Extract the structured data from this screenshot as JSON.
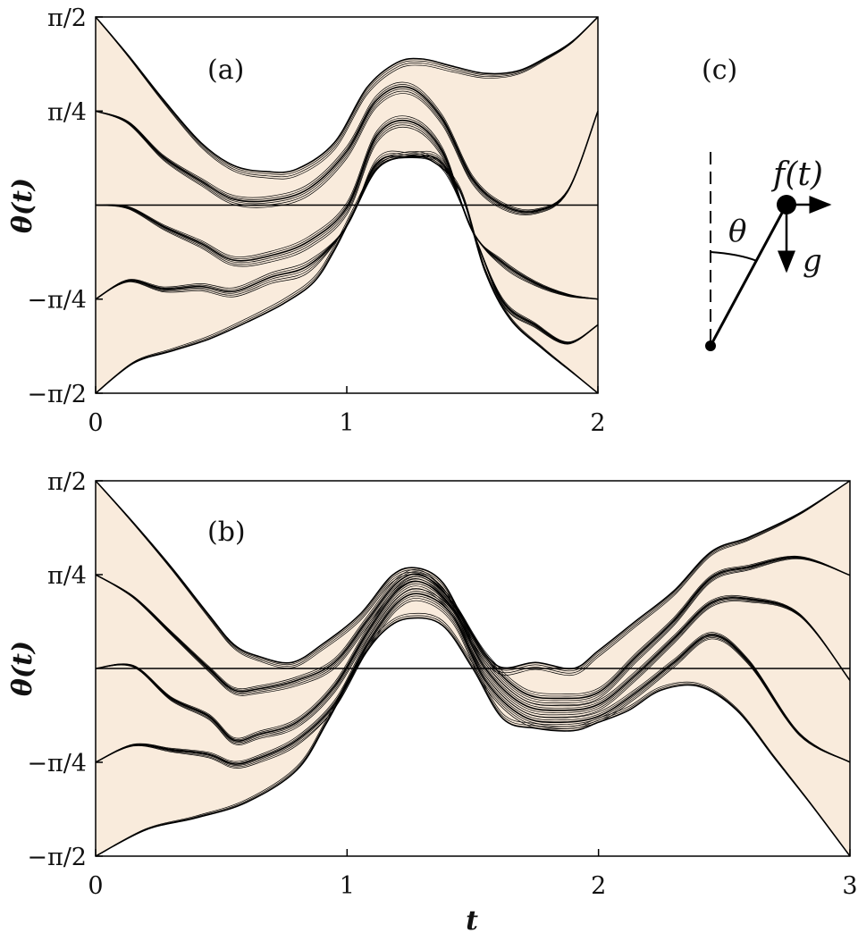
{
  "chart_data": [
    {
      "type": "line",
      "panel_label": "(a)",
      "ylabel": "θ(t)",
      "xlabel": "",
      "xlim": [
        0,
        2
      ],
      "ylim": [
        -1.5708,
        1.5708
      ],
      "x_ticks": [
        "0",
        "1",
        "2"
      ],
      "y_ticks": [
        "π/2",
        "π/4",
        "−π/4",
        "−π/2"
      ],
      "fill_color": "#f9ebdc",
      "baseline": 0,
      "envelope_upper": [
        [
          0,
          1.571
        ],
        [
          0.13,
          1.25
        ],
        [
          0.27,
          0.88
        ],
        [
          0.42,
          0.52
        ],
        [
          0.55,
          0.33
        ],
        [
          0.68,
          0.28
        ],
        [
          0.8,
          0.3
        ],
        [
          0.95,
          0.52
        ],
        [
          1.08,
          0.98
        ],
        [
          1.2,
          1.19
        ],
        [
          1.3,
          1.22
        ],
        [
          1.42,
          1.16
        ],
        [
          1.55,
          1.1
        ],
        [
          1.68,
          1.12
        ],
        [
          1.8,
          1.24
        ],
        [
          1.9,
          1.37
        ],
        [
          2,
          1.571
        ]
      ],
      "envelope_lower": [
        [
          0,
          -1.571
        ],
        [
          0.15,
          -1.32
        ],
        [
          0.3,
          -1.22
        ],
        [
          0.45,
          -1.12
        ],
        [
          0.6,
          -0.98
        ],
        [
          0.75,
          -0.82
        ],
        [
          0.87,
          -0.64
        ],
        [
          0.95,
          -0.38
        ],
        [
          1.03,
          -0.05
        ],
        [
          1.12,
          0.3
        ],
        [
          1.22,
          0.4
        ],
        [
          1.33,
          0.38
        ],
        [
          1.45,
          0.12
        ],
        [
          1.55,
          -0.55
        ],
        [
          1.65,
          -0.95
        ],
        [
          1.78,
          -1.2
        ],
        [
          1.9,
          -1.4
        ],
        [
          2,
          -1.571
        ]
      ],
      "series": [
        {
          "name": "start π/2",
          "x": [
            0,
            0.13,
            0.27,
            0.42,
            0.55,
            0.68,
            0.8,
            0.95,
            1.08,
            1.2,
            1.3,
            1.42,
            1.55,
            1.68,
            1.8,
            1.9,
            2
          ],
          "y": [
            1.571,
            1.25,
            0.88,
            0.52,
            0.33,
            0.28,
            0.3,
            0.52,
            0.98,
            1.19,
            1.22,
            1.16,
            1.1,
            1.12,
            1.24,
            1.37,
            1.571
          ]
        },
        {
          "name": "start π/4",
          "x": [
            0,
            0.13,
            0.27,
            0.42,
            0.55,
            0.7,
            0.85,
            1.0,
            1.12,
            1.25,
            1.38,
            1.5,
            1.62,
            1.75,
            1.88,
            2
          ],
          "y": [
            0.785,
            0.69,
            0.4,
            0.2,
            0.05,
            0.04,
            0.14,
            0.45,
            0.88,
            0.98,
            0.72,
            0.22,
            0.0,
            -0.05,
            0.12,
            0.785
          ]
        },
        {
          "name": "start 0",
          "x": [
            0,
            0.13,
            0.27,
            0.42,
            0.55,
            0.7,
            0.85,
            1.0,
            1.12,
            1.25,
            1.38,
            1.5,
            1.62,
            1.75,
            1.88,
            2
          ],
          "y": [
            0.0,
            -0.02,
            -0.18,
            -0.32,
            -0.46,
            -0.42,
            -0.3,
            -0.02,
            0.58,
            0.7,
            0.45,
            -0.3,
            -0.48,
            -0.65,
            -0.75,
            -0.785
          ]
        },
        {
          "name": "start −π/4",
          "x": [
            0,
            0.13,
            0.27,
            0.42,
            0.55,
            0.7,
            0.85,
            1.0,
            1.12,
            1.25,
            1.38,
            1.5,
            1.62,
            1.75,
            1.88,
            2
          ],
          "y": [
            -0.785,
            -0.63,
            -0.7,
            -0.68,
            -0.72,
            -0.6,
            -0.5,
            -0.24,
            0.35,
            0.4,
            0.35,
            -0.48,
            -0.8,
            -1.0,
            -1.15,
            -1.0
          ]
        },
        {
          "name": "start −π/2",
          "x": [
            0,
            0.15,
            0.3,
            0.45,
            0.6,
            0.75,
            0.87,
            0.95,
            1.03,
            1.12,
            1.22,
            1.33,
            1.45,
            1.55,
            1.65,
            1.78,
            1.9,
            2
          ],
          "y": [
            -1.571,
            -1.32,
            -1.22,
            -1.12,
            -0.98,
            -0.82,
            -0.64,
            -0.38,
            -0.05,
            0.3,
            0.4,
            0.38,
            0.12,
            -0.55,
            -0.95,
            -1.2,
            -1.4,
            -1.571
          ]
        }
      ]
    },
    {
      "type": "line",
      "panel_label": "(b)",
      "ylabel": "θ(t)",
      "xlabel": "t",
      "xlim": [
        0,
        3
      ],
      "ylim": [
        -1.5708,
        1.5708
      ],
      "x_ticks": [
        "0",
        "1",
        "2",
        "3"
      ],
      "y_ticks": [
        "π/2",
        "π/4",
        "−π/4",
        "−π/2"
      ],
      "fill_color": "#f9ebdc",
      "baseline": 0,
      "envelope_upper": [
        [
          0,
          1.571
        ],
        [
          0.15,
          1.22
        ],
        [
          0.3,
          0.85
        ],
        [
          0.45,
          0.45
        ],
        [
          0.55,
          0.2
        ],
        [
          0.65,
          0.1
        ],
        [
          0.78,
          0.05
        ],
        [
          0.9,
          0.2
        ],
        [
          1.05,
          0.45
        ],
        [
          1.18,
          0.78
        ],
        [
          1.28,
          0.84
        ],
        [
          1.38,
          0.72
        ],
        [
          1.48,
          0.35
        ],
        [
          1.6,
          0.02
        ],
        [
          1.75,
          0.05
        ],
        [
          1.9,
          0.0
        ],
        [
          2.0,
          0.15
        ],
        [
          2.15,
          0.4
        ],
        [
          2.3,
          0.65
        ],
        [
          2.45,
          0.98
        ],
        [
          2.6,
          1.1
        ],
        [
          2.8,
          1.3
        ],
        [
          3,
          1.571
        ]
      ],
      "envelope_lower": [
        [
          0,
          -1.571
        ],
        [
          0.2,
          -1.35
        ],
        [
          0.4,
          -1.25
        ],
        [
          0.6,
          -1.12
        ],
        [
          0.8,
          -0.85
        ],
        [
          0.92,
          -0.45
        ],
        [
          1.05,
          0.05
        ],
        [
          1.15,
          0.32
        ],
        [
          1.25,
          0.42
        ],
        [
          1.38,
          0.36
        ],
        [
          1.5,
          0.0
        ],
        [
          1.62,
          -0.42
        ],
        [
          1.75,
          -0.5
        ],
        [
          1.9,
          -0.52
        ],
        [
          2.0,
          -0.45
        ],
        [
          2.12,
          -0.35
        ],
        [
          2.25,
          -0.18
        ],
        [
          2.4,
          -0.15
        ],
        [
          2.55,
          -0.35
        ],
        [
          2.7,
          -0.75
        ],
        [
          2.85,
          -1.15
        ],
        [
          3,
          -1.571
        ]
      ],
      "series": [
        {
          "name": "start π/2",
          "x": [
            0,
            0.15,
            0.3,
            0.45,
            0.55,
            0.65,
            0.78,
            0.9,
            1.05,
            1.18,
            1.28,
            1.38,
            1.48,
            1.6,
            1.75,
            1.9,
            2.0,
            2.15,
            2.3,
            2.45,
            2.6,
            2.8,
            3
          ],
          "y": [
            1.571,
            1.22,
            0.85,
            0.45,
            0.2,
            0.1,
            0.05,
            0.2,
            0.45,
            0.78,
            0.84,
            0.72,
            0.35,
            0.02,
            0.05,
            0.0,
            0.15,
            0.4,
            0.65,
            0.98,
            1.1,
            1.3,
            1.571
          ]
        },
        {
          "name": "start π/4",
          "x": [
            0,
            0.15,
            0.3,
            0.45,
            0.55,
            0.65,
            0.8,
            0.95,
            1.08,
            1.2,
            1.3,
            1.42,
            1.55,
            1.7,
            1.85,
            2.0,
            2.15,
            2.3,
            2.45,
            2.6,
            2.8,
            3
          ],
          "y": [
            0.785,
            0.6,
            0.3,
            0.0,
            -0.18,
            -0.17,
            -0.1,
            0.05,
            0.4,
            0.72,
            0.78,
            0.55,
            0.1,
            -0.2,
            -0.25,
            -0.2,
            0.1,
            0.4,
            0.76,
            0.85,
            0.93,
            0.78
          ]
        },
        {
          "name": "start 0",
          "x": [
            0,
            0.15,
            0.3,
            0.45,
            0.55,
            0.65,
            0.8,
            0.95,
            1.08,
            1.2,
            1.3,
            1.42,
            1.55,
            1.7,
            1.85,
            2.0,
            2.15,
            2.3,
            2.45,
            2.6,
            2.8,
            3
          ],
          "y": [
            0.0,
            0.02,
            -0.25,
            -0.4,
            -0.6,
            -0.55,
            -0.45,
            -0.15,
            0.3,
            0.65,
            0.72,
            0.5,
            0.0,
            -0.3,
            -0.35,
            -0.3,
            -0.05,
            0.25,
            0.55,
            0.58,
            0.45,
            -0.1
          ]
        },
        {
          "name": "start −π/4",
          "x": [
            0,
            0.15,
            0.3,
            0.45,
            0.55,
            0.65,
            0.8,
            0.95,
            1.08,
            1.2,
            1.3,
            1.42,
            1.55,
            1.7,
            1.85,
            2.0,
            2.15,
            2.3,
            2.45,
            2.6,
            2.8,
            3
          ],
          "y": [
            -0.785,
            -0.64,
            -0.68,
            -0.72,
            -0.8,
            -0.75,
            -0.6,
            -0.3,
            0.2,
            0.55,
            0.62,
            0.44,
            -0.1,
            -0.4,
            -0.45,
            -0.4,
            -0.2,
            0.05,
            0.28,
            0.05,
            -0.55,
            -0.785
          ]
        },
        {
          "name": "start −π/2",
          "x": [
            0,
            0.2,
            0.4,
            0.6,
            0.8,
            0.92,
            1.05,
            1.15,
            1.25,
            1.38,
            1.5,
            1.62,
            1.75,
            1.9,
            2.0,
            2.12,
            2.25,
            2.4,
            2.55,
            2.7,
            2.85,
            3
          ],
          "y": [
            -1.571,
            -1.35,
            -1.25,
            -1.12,
            -0.85,
            -0.45,
            0.05,
            0.32,
            0.42,
            0.36,
            0.0,
            -0.42,
            -0.5,
            -0.52,
            -0.45,
            -0.35,
            -0.18,
            -0.15,
            -0.35,
            -0.75,
            -1.15,
            -1.571
          ]
        }
      ]
    }
  ],
  "diagram": {
    "panel_label": "(c)",
    "force_label": "f(t)",
    "angle_label": "θ",
    "gravity_label": "g"
  }
}
